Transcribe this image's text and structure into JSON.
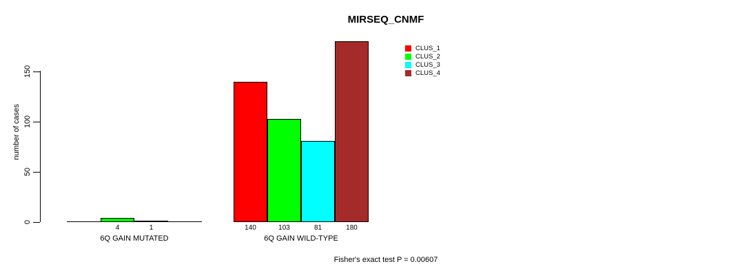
{
  "chart_data": {
    "type": "bar",
    "title": "MIRSEQ_CNMF",
    "ylabel": "number of cases",
    "yticks": [
      0,
      50,
      100,
      150
    ],
    "ylim": [
      0,
      185
    ],
    "grid": false,
    "legend_position": "top-right-of-plot",
    "categories": [
      "6Q GAIN MUTATED",
      "6Q GAIN WILD-TYPE"
    ],
    "series": [
      {
        "name": "CLUS_1",
        "color": "#FF0000",
        "values": [
          0,
          140
        ]
      },
      {
        "name": "CLUS_2",
        "color": "#00FF00",
        "values": [
          4,
          103
        ]
      },
      {
        "name": "CLUS_3",
        "color": "#00FFFF",
        "values": [
          1,
          81
        ]
      },
      {
        "name": "CLUS_4",
        "color": "#A52A2A",
        "values": [
          0,
          180
        ]
      }
    ],
    "bar_labels_shown": [
      "4",
      "1",
      "140",
      "103",
      "81",
      "180"
    ],
    "annotation": "Fisher's exact test P = 0.00607"
  },
  "colors": {
    "background": "#FFFFFF",
    "axis": "#000000",
    "text": "#000000"
  }
}
